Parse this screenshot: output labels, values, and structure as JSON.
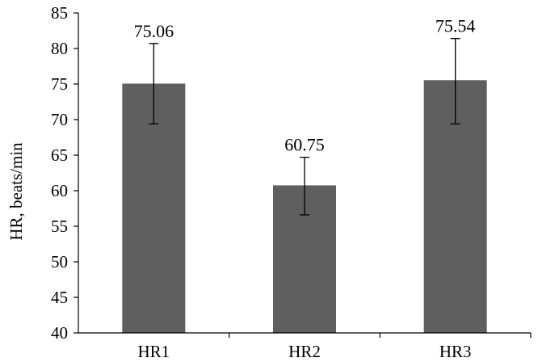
{
  "chart_data": {
    "type": "bar",
    "title": "",
    "xlabel": "",
    "ylabel": "HR, beats/min",
    "categories": [
      "HR1",
      "HR2",
      "HR3"
    ],
    "values": [
      75.06,
      60.75,
      75.54
    ],
    "value_labels": [
      "75.06",
      "60.75",
      "75.54"
    ],
    "error_upper": [
      80.7,
      64.7,
      81.4
    ],
    "error_lower": [
      69.4,
      56.6,
      69.4
    ],
    "ylim": [
      40,
      85
    ],
    "yticks": [
      40,
      45,
      50,
      55,
      60,
      65,
      70,
      75,
      80,
      85
    ],
    "ytick_labels": [
      "40",
      "45",
      "50",
      "55",
      "60",
      "65",
      "70",
      "75",
      "80",
      "85"
    ],
    "grid": false,
    "legend": "none",
    "bar_color": "#5f5f5f"
  }
}
